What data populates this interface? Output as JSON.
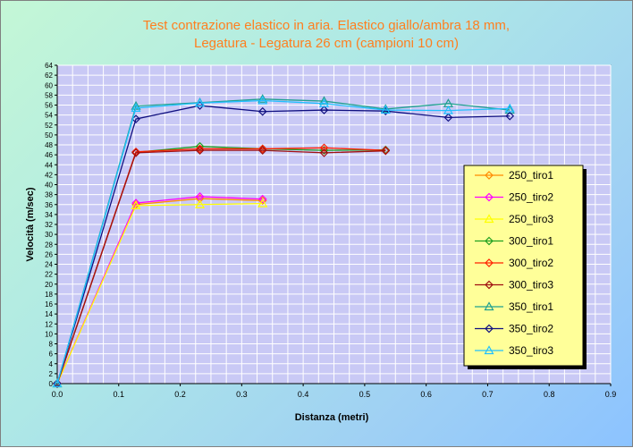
{
  "chart_data": {
    "type": "scatter",
    "title_lines": [
      "Test contrazione elastico in aria. Elastico giallo/ambra 18 mm,",
      "Legatura - Legatura 26 cm (campioni 10 cm)"
    ],
    "xlabel": "Distanza (metri)",
    "ylabel": "Velocità (m/sec)",
    "xlim": [
      0,
      0.9
    ],
    "ylim": [
      0,
      64
    ],
    "xticks": [
      "0.0",
      "0.1",
      "0.2",
      "0.3",
      "0.4",
      "0.5",
      "0.6",
      "0.7",
      "0.8",
      "0.9"
    ],
    "yticks": [
      0,
      2,
      4,
      6,
      8,
      10,
      12,
      14,
      16,
      18,
      20,
      22,
      24,
      26,
      28,
      30,
      32,
      34,
      36,
      38,
      40,
      42,
      44,
      46,
      48,
      50,
      52,
      54,
      56,
      58,
      60,
      62,
      64
    ],
    "grid": true,
    "legend_position": "right",
    "plot_background": "#c9c9f5",
    "grid_color": "#ffffff",
    "series": [
      {
        "name": "250_tiro1",
        "color": "#ff8a00",
        "marker": "diamond",
        "x": [
          0,
          0.128,
          0.232,
          0.334
        ],
        "y": [
          0,
          36.0,
          37.2,
          36.8
        ]
      },
      {
        "name": "250_tiro2",
        "color": "#ff00ff",
        "marker": "diamond",
        "x": [
          0,
          0.128,
          0.232,
          0.334
        ],
        "y": [
          0,
          36.3,
          37.6,
          37.1
        ]
      },
      {
        "name": "250_tiro3",
        "color": "#ffff00",
        "marker": "triangle",
        "x": [
          0,
          0.128,
          0.232,
          0.334
        ],
        "y": [
          0,
          35.8,
          36.0,
          36.2
        ]
      },
      {
        "name": "300_tiro1",
        "color": "#20a020",
        "marker": "diamond",
        "x": [
          0,
          0.128,
          0.232,
          0.334,
          0.434,
          0.534
        ],
        "y": [
          0,
          46.5,
          47.7,
          47.2,
          46.9,
          47.0
        ]
      },
      {
        "name": "300_tiro2",
        "color": "#ff2000",
        "marker": "diamond",
        "x": [
          0,
          0.128,
          0.232,
          0.334,
          0.434,
          0.534
        ],
        "y": [
          0,
          46.6,
          47.2,
          47.2,
          47.4,
          46.9
        ]
      },
      {
        "name": "300_tiro3",
        "color": "#a01010",
        "marker": "diamond",
        "x": [
          0,
          0.128,
          0.232,
          0.334,
          0.434,
          0.534
        ],
        "y": [
          0,
          46.4,
          46.9,
          46.9,
          46.4,
          46.8
        ]
      },
      {
        "name": "350_tiro1",
        "color": "#20a090",
        "marker": "triangle",
        "x": [
          0,
          0.128,
          0.232,
          0.334,
          0.434,
          0.534,
          0.636,
          0.736
        ],
        "y": [
          0,
          55.8,
          56.5,
          57.2,
          56.8,
          55.2,
          56.3,
          55.0
        ]
      },
      {
        "name": "350_tiro2",
        "color": "#101080",
        "marker": "diamond",
        "x": [
          0,
          0.128,
          0.232,
          0.334,
          0.434,
          0.534,
          0.636,
          0.736
        ],
        "y": [
          0,
          53.2,
          55.9,
          54.7,
          55.0,
          54.8,
          53.5,
          53.8
        ]
      },
      {
        "name": "350_tiro3",
        "color": "#20c0ff",
        "marker": "triangle",
        "x": [
          0,
          0.128,
          0.232,
          0.334,
          0.434,
          0.534,
          0.636,
          0.736
        ],
        "y": [
          0,
          55.4,
          56.4,
          56.9,
          56.3,
          55.0,
          54.9,
          55.3
        ]
      }
    ]
  }
}
